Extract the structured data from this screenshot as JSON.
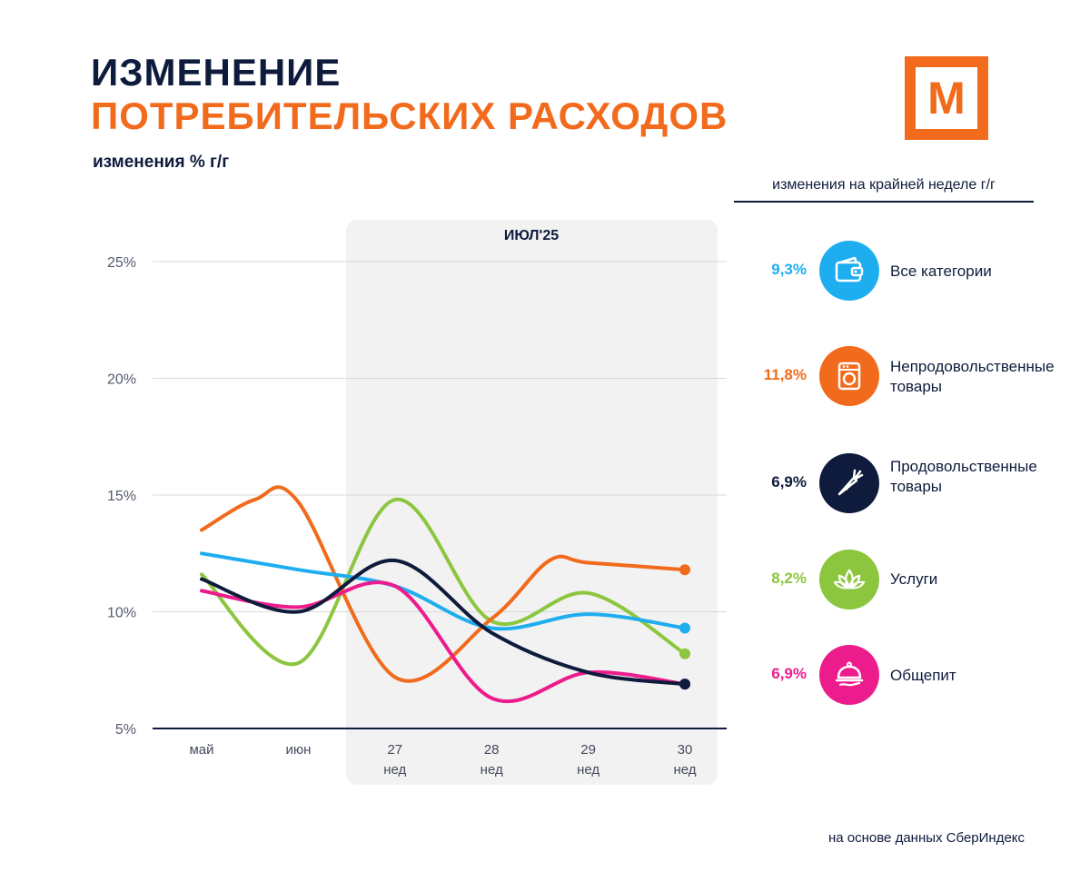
{
  "header": {
    "title_line1": "ИЗМЕНЕНИЕ",
    "title_line2": "ПОТРЕБИТЕЛЬСКИХ РАСХОДОВ",
    "subtitle": "изменения % г/г",
    "logo_letter": "М"
  },
  "legend": {
    "heading": "изменения на крайней неделе г/г",
    "items": [
      {
        "value": "9,3%",
        "label": "Все категории",
        "color": "#1eaef0",
        "icon": "wallet-icon"
      },
      {
        "value": "11,8%",
        "label": "Непродовольственные товары",
        "color": "#f26a1b",
        "icon": "washing-machine-icon"
      },
      {
        "value": "6,9%",
        "label": "Продовольственные товары",
        "color": "#0f1b3d",
        "icon": "carrot-icon"
      },
      {
        "value": "8,2%",
        "label": "Услуги",
        "color": "#8cc63f",
        "icon": "lotus-icon"
      },
      {
        "value": "6,9%",
        "label": "Общепит",
        "color": "#ec1c8c",
        "icon": "cloche-icon"
      }
    ]
  },
  "footer": {
    "source": "на основе данных СберИндекс"
  },
  "chart_data": {
    "type": "line",
    "title": "изменения % г/г",
    "highlight_period": "ИЮЛ'25",
    "categories": [
      "май",
      "июн",
      "27",
      "28",
      "29",
      "30"
    ],
    "category_sublabels": [
      "",
      "",
      "нед",
      "нед",
      "нед",
      "нед"
    ],
    "ylim": [
      5,
      25
    ],
    "yticks": [
      "5%",
      "10%",
      "15%",
      "20%",
      "25%"
    ],
    "series": [
      {
        "name": "Все категории",
        "color": "#1eaef0",
        "values": [
          12.5,
          11.8,
          11.1,
          9.3,
          9.9,
          9.3
        ]
      },
      {
        "name": "Непродовольственные товары",
        "color": "#f26a1b",
        "values": [
          13.5,
          14.7,
          7.2,
          9.7,
          12.1,
          11.8
        ],
        "extrema": [
          [
            0.55,
            14.8
          ],
          [
            1.95,
            6.9
          ],
          [
            3.6,
            12.2
          ]
        ]
      },
      {
        "name": "Продовольственные товары",
        "color": "#0f1b3d",
        "values": [
          11.4,
          10.0,
          12.2,
          9.1,
          7.4,
          6.9
        ],
        "extrema": [
          [
            1.95,
            12.3
          ]
        ]
      },
      {
        "name": "Услуги",
        "color": "#8cc63f",
        "values": [
          11.6,
          7.8,
          14.8,
          9.6,
          10.8,
          8.2
        ],
        "extrema": [
          [
            0.95,
            7.8
          ],
          [
            1.95,
            14.9
          ],
          [
            2.95,
            9.6
          ],
          [
            3.95,
            10.8
          ]
        ]
      },
      {
        "name": "Общепит",
        "color": "#ec1c8c",
        "values": [
          10.9,
          10.2,
          11.1,
          6.3,
          7.4,
          6.9
        ],
        "extrema": [
          [
            3.05,
            6.3
          ]
        ]
      }
    ]
  }
}
